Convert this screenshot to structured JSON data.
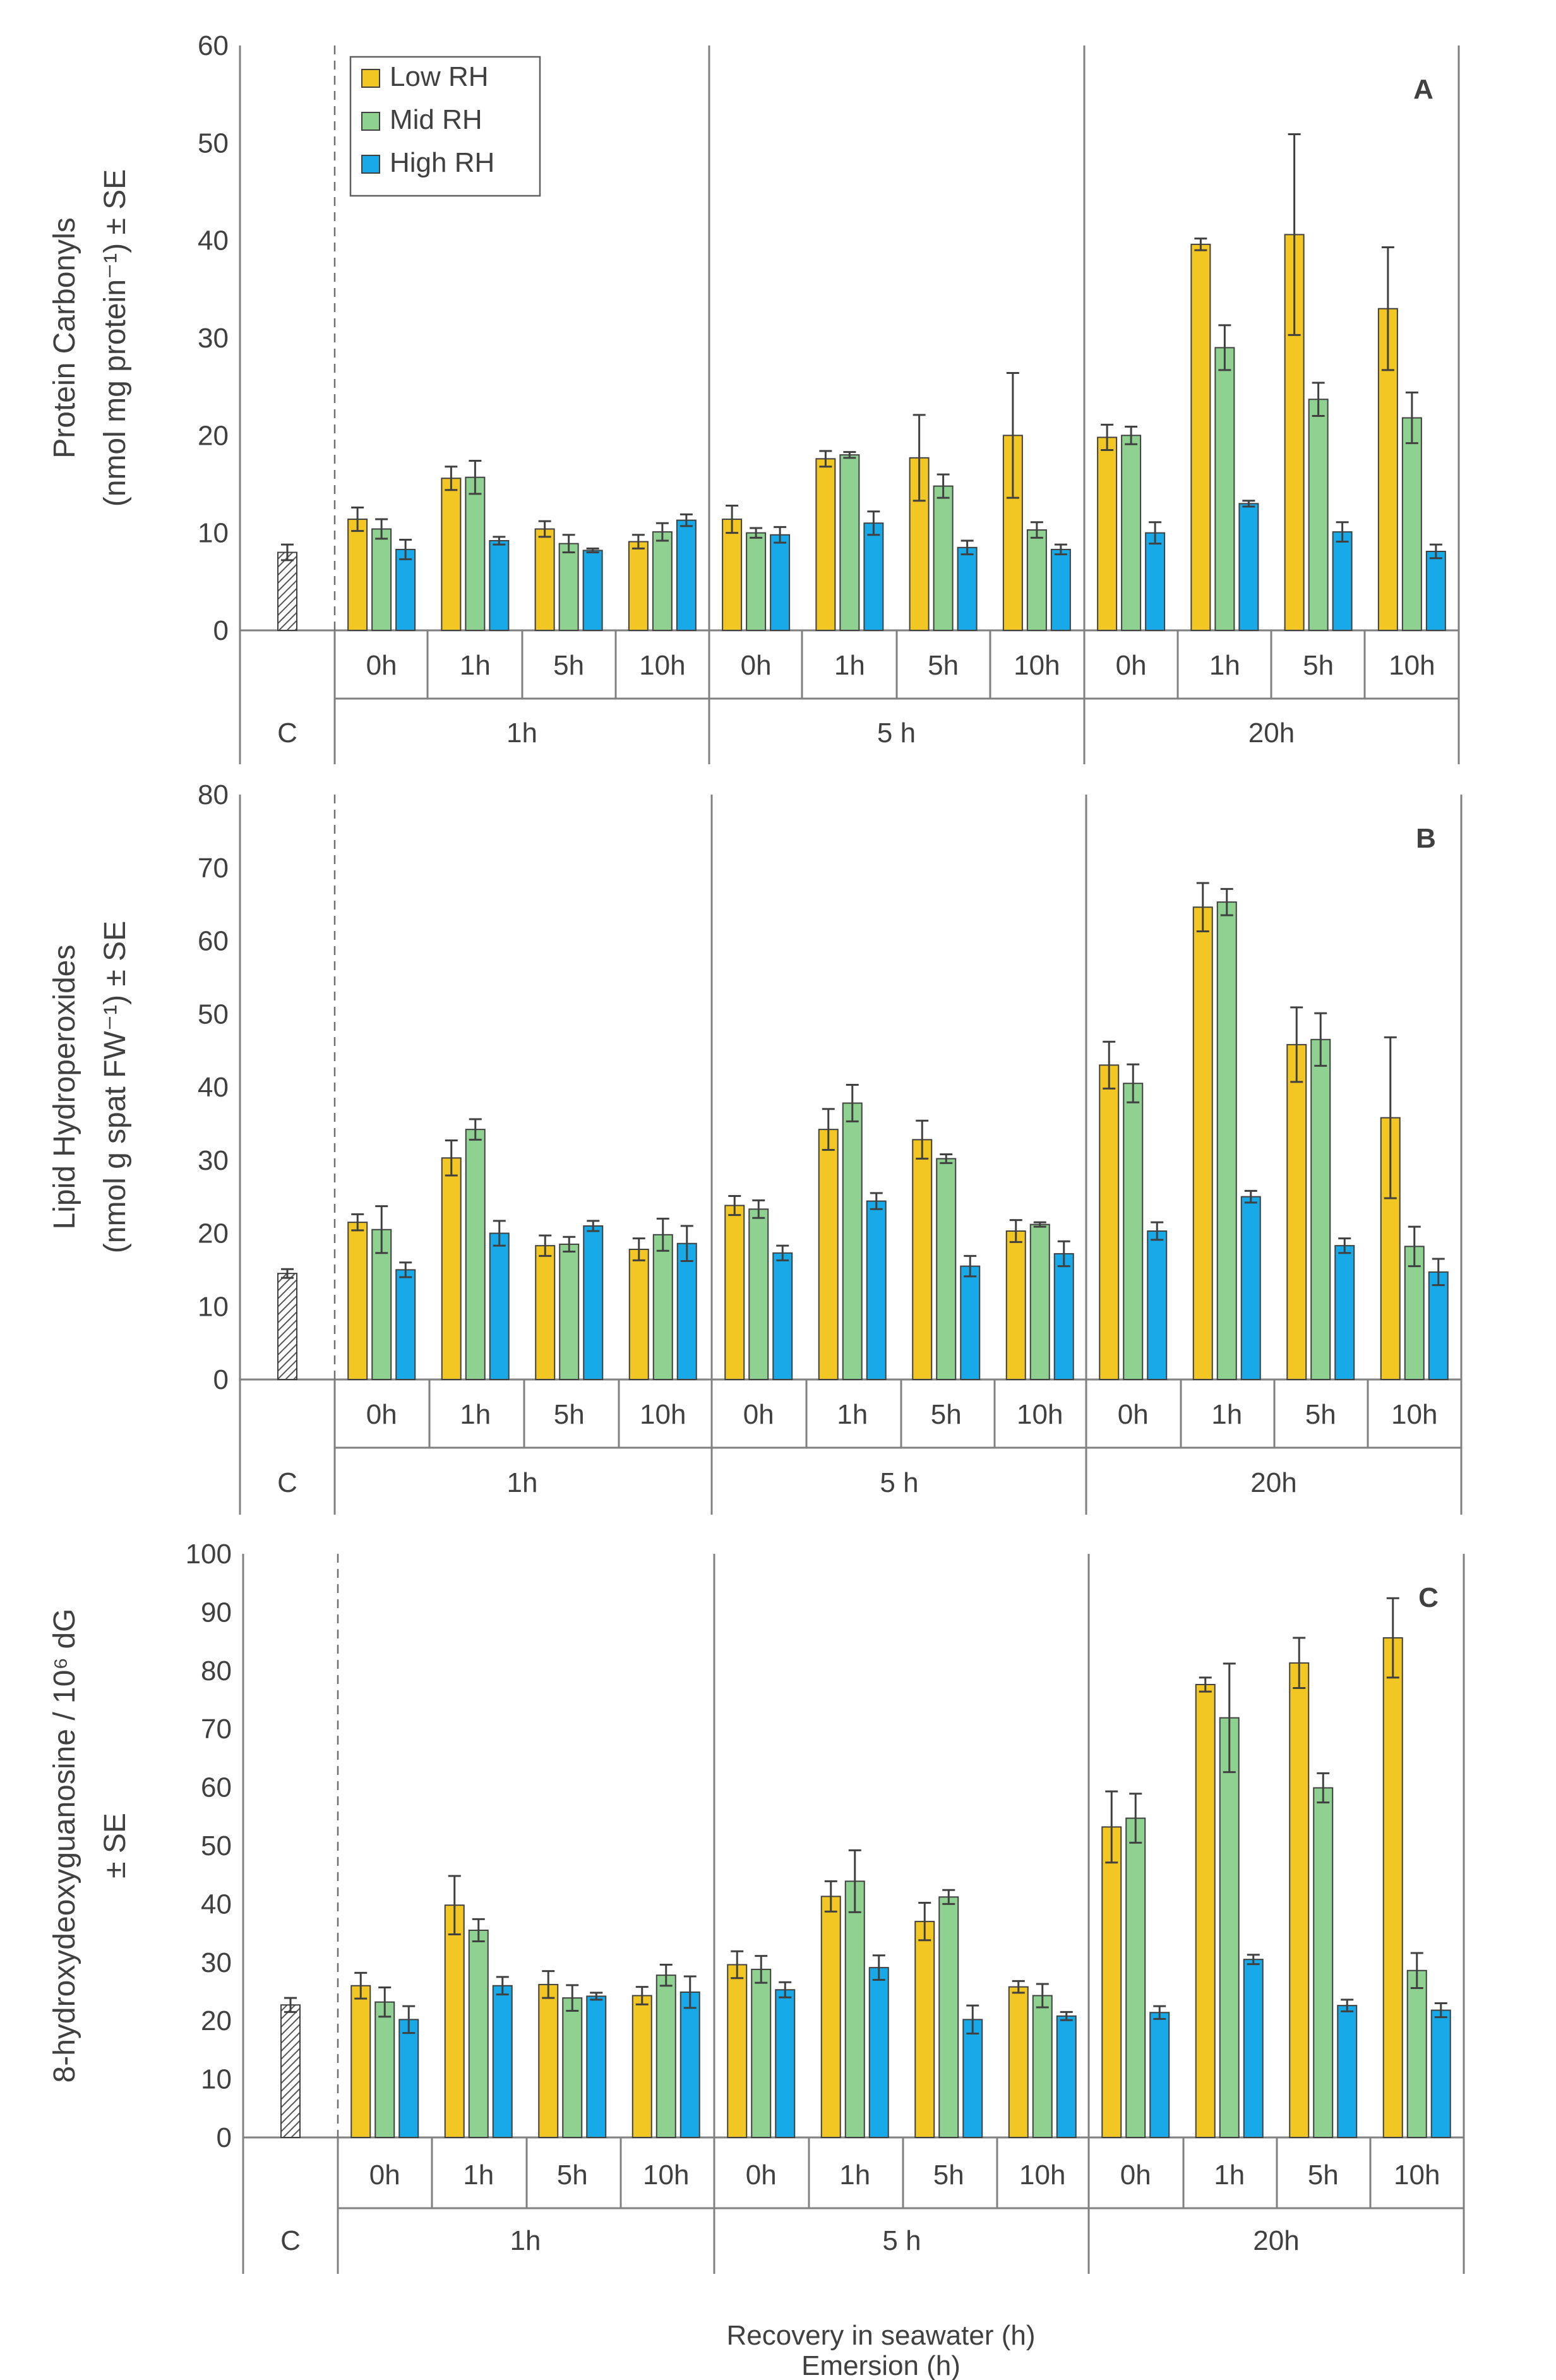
{
  "figure": {
    "xlabel_recovery": "Recovery in seawater (h)",
    "xlabel_emersion": "Emersion (h)"
  },
  "legend": [
    {
      "name": "Low RH",
      "color": "#F2C623"
    },
    {
      "name": "Mid RH",
      "color": "#8FD190"
    },
    {
      "name": "High RH",
      "color": "#17A9E8"
    }
  ],
  "control_color": "#bdbdbd",
  "recovery_labels": [
    "0h",
    "1h",
    "5h",
    "10h"
  ],
  "emersion_labels": [
    "C",
    "1h",
    "5 h",
    "20h"
  ],
  "chart_data": [
    {
      "type": "bar",
      "panel": "A",
      "ylabel_line1": "Protein Carbonyls",
      "ylabel_line2": "(nmol mg protein⁻¹) ± SE",
      "ylim": [
        0,
        60
      ],
      "ystep": 10,
      "control": {
        "label": "C",
        "value": 8,
        "err": 0.8
      },
      "groups": [
        {
          "emersion": "1h",
          "recovery": [
            "0h",
            "1h",
            "5h",
            "10h"
          ],
          "series": [
            {
              "name": "Low RH",
              "values": [
                11.4,
                15.6,
                10.4,
                9.1
              ],
              "err": [
                1.2,
                1.2,
                0.8,
                0.7
              ]
            },
            {
              "name": "Mid RH",
              "values": [
                10.4,
                15.7,
                8.9,
                10.1
              ],
              "err": [
                1.0,
                1.7,
                0.9,
                0.9
              ]
            },
            {
              "name": "High RH",
              "values": [
                8.3,
                9.2,
                8.2,
                11.3
              ],
              "err": [
                1.0,
                0.4,
                0.2,
                0.6
              ]
            }
          ]
        },
        {
          "emersion": "5 h",
          "recovery": [
            "0h",
            "1h",
            "5h",
            "10h"
          ],
          "series": [
            {
              "name": "Low RH",
              "values": [
                11.4,
                17.6,
                17.7,
                20.0
              ],
              "err": [
                1.4,
                0.8,
                4.4,
                6.4
              ]
            },
            {
              "name": "Mid RH",
              "values": [
                10.0,
                18.0,
                14.8,
                10.3
              ],
              "err": [
                0.5,
                0.3,
                1.2,
                0.8
              ]
            },
            {
              "name": "High RH",
              "values": [
                9.8,
                11.0,
                8.5,
                8.3
              ],
              "err": [
                0.8,
                1.2,
                0.7,
                0.5
              ]
            }
          ]
        },
        {
          "emersion": "20h",
          "recovery": [
            "0h",
            "1h",
            "5h",
            "10h"
          ],
          "series": [
            {
              "name": "Low RH",
              "values": [
                19.8,
                39.6,
                40.6,
                33.0
              ],
              "err": [
                1.3,
                0.6,
                10.3,
                6.3
              ]
            },
            {
              "name": "Mid RH",
              "values": [
                20.0,
                29.0,
                23.7,
                21.8
              ],
              "err": [
                0.9,
                2.3,
                1.7,
                2.6
              ]
            },
            {
              "name": "High RH",
              "values": [
                10.0,
                13.0,
                10.1,
                8.1
              ],
              "err": [
                1.1,
                0.3,
                1.0,
                0.7
              ]
            }
          ]
        }
      ]
    },
    {
      "type": "bar",
      "panel": "B",
      "ylabel_line1": "Lipid Hydroperoxides",
      "ylabel_line2": "(nmol g spat FW⁻¹) ± SE",
      "ylim": [
        0,
        80
      ],
      "ystep": 10,
      "control": {
        "label": "C",
        "value": 14.5,
        "err": 0.6
      },
      "groups": [
        {
          "emersion": "1h",
          "recovery": [
            "0h",
            "1h",
            "5h",
            "10h"
          ],
          "series": [
            {
              "name": "Low RH",
              "values": [
                21.5,
                30.3,
                18.3,
                17.8
              ],
              "err": [
                1.1,
                2.4,
                1.4,
                1.5
              ]
            },
            {
              "name": "Mid RH",
              "values": [
                20.5,
                34.2,
                18.5,
                19.8
              ],
              "err": [
                3.2,
                1.4,
                1.0,
                2.2
              ]
            },
            {
              "name": "High RH",
              "values": [
                15.0,
                20.0,
                21.0,
                18.6
              ],
              "err": [
                1.0,
                1.7,
                0.7,
                2.4
              ]
            }
          ]
        },
        {
          "emersion": "5 h",
          "recovery": [
            "0h",
            "1h",
            "5h",
            "10h"
          ],
          "series": [
            {
              "name": "Low RH",
              "values": [
                23.8,
                34.2,
                32.8,
                20.3
              ],
              "err": [
                1.3,
                2.8,
                2.6,
                1.5
              ]
            },
            {
              "name": "Mid RH",
              "values": [
                23.3,
                37.8,
                30.2,
                21.2
              ],
              "err": [
                1.2,
                2.5,
                0.6,
                0.3
              ]
            },
            {
              "name": "High RH",
              "values": [
                17.3,
                24.4,
                15.5,
                17.2
              ],
              "err": [
                1.0,
                1.1,
                1.4,
                1.7
              ]
            }
          ]
        },
        {
          "emersion": "20h",
          "recovery": [
            "0h",
            "1h",
            "5h",
            "10h"
          ],
          "series": [
            {
              "name": "Low RH",
              "values": [
                43.0,
                64.6,
                45.8,
                35.8
              ],
              "err": [
                3.2,
                3.3,
                5.1,
                11.0
              ]
            },
            {
              "name": "Mid RH",
              "values": [
                40.5,
                65.3,
                46.5,
                18.2
              ],
              "err": [
                2.6,
                1.8,
                3.6,
                2.7
              ]
            },
            {
              "name": "High RH",
              "values": [
                20.3,
                25.0,
                18.3,
                14.7
              ],
              "err": [
                1.2,
                0.8,
                1.0,
                1.8
              ]
            }
          ]
        }
      ]
    },
    {
      "type": "bar",
      "panel": "C",
      "ylabel_line1": "8-hydroxydeoxyguanosine / 10⁶ dG",
      "ylabel_line2": "± SE",
      "ylim": [
        0,
        100
      ],
      "ystep": 10,
      "control": {
        "label": "C",
        "value": 22.7,
        "err": 1.2
      },
      "groups": [
        {
          "emersion": "1h",
          "recovery": [
            "0h",
            "1h",
            "5h",
            "10h"
          ],
          "series": [
            {
              "name": "Low RH",
              "values": [
                26.0,
                39.8,
                26.2,
                24.3
              ],
              "err": [
                2.2,
                5.0,
                2.3,
                1.5
              ]
            },
            {
              "name": "Mid RH",
              "values": [
                23.2,
                35.5,
                23.9,
                27.8
              ],
              "err": [
                2.5,
                1.9,
                2.2,
                1.8
              ]
            },
            {
              "name": "High RH",
              "values": [
                20.2,
                26.0,
                24.2,
                24.9
              ],
              "err": [
                2.3,
                1.5,
                0.6,
                2.7
              ]
            }
          ]
        },
        {
          "emersion": "5 h",
          "recovery": [
            "0h",
            "1h",
            "5h",
            "10h"
          ],
          "series": [
            {
              "name": "Low RH",
              "values": [
                29.6,
                41.3,
                37.0,
                25.8
              ],
              "err": [
                2.3,
                2.6,
                3.2,
                1.0
              ]
            },
            {
              "name": "Mid RH",
              "values": [
                28.8,
                43.9,
                41.2,
                24.3
              ],
              "err": [
                2.3,
                5.3,
                1.2,
                2.0
              ]
            },
            {
              "name": "High RH",
              "values": [
                25.3,
                29.1,
                20.2,
                20.8
              ],
              "err": [
                1.3,
                2.1,
                2.4,
                0.7
              ]
            }
          ]
        },
        {
          "emersion": "20h",
          "recovery": [
            "0h",
            "1h",
            "5h",
            "10h"
          ],
          "series": [
            {
              "name": "Low RH",
              "values": [
                53.2,
                77.6,
                81.3,
                85.6
              ],
              "err": [
                6.1,
                1.2,
                4.3,
                6.8
              ]
            },
            {
              "name": "Mid RH",
              "values": [
                54.7,
                71.9,
                59.9,
                28.6
              ],
              "err": [
                4.2,
                9.3,
                2.5,
                3.0
              ]
            },
            {
              "name": "High RH",
              "values": [
                21.4,
                30.5,
                22.6,
                21.8
              ],
              "err": [
                1.1,
                0.8,
                1.0,
                1.2
              ]
            }
          ]
        }
      ]
    }
  ]
}
